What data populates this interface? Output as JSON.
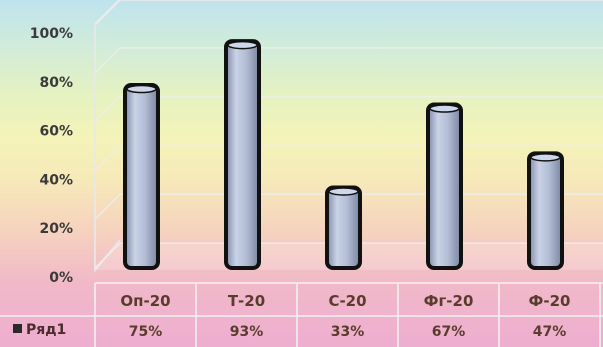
{
  "chart_data": {
    "type": "bar",
    "categories": [
      "Оп-20",
      "Т-20",
      "С-20",
      "Фг-20",
      "Ф-20"
    ],
    "series": [
      {
        "name": "Ряд1",
        "values": [
          75,
          93,
          33,
          67,
          47
        ],
        "labels": [
          "75%",
          "93%",
          "33%",
          "67%",
          "47%"
        ]
      }
    ],
    "y_ticks": [
      "0%",
      "20%",
      "40%",
      "60%",
      "80%",
      "100%"
    ],
    "ylim": [
      0,
      100
    ],
    "grid": true,
    "data_table": true,
    "colors": {
      "bar": "#aeb9d3",
      "bar_outline": "#111111"
    }
  }
}
